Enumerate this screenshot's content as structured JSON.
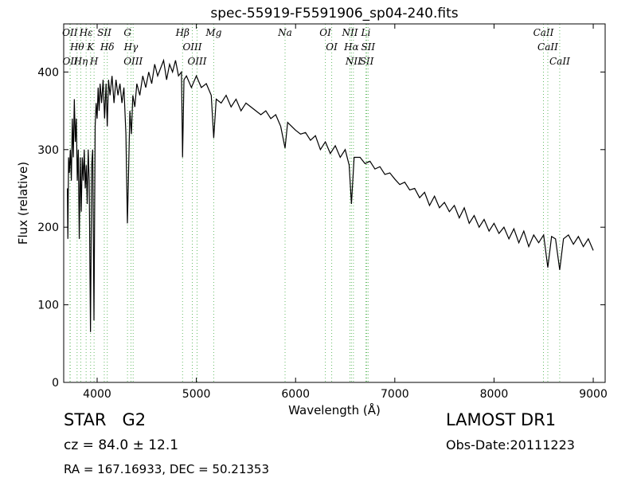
{
  "chart_data": {
    "type": "line",
    "title": "spec-55919-F5591906_sp04-240.fits",
    "x_label": "Wavelength (Å)",
    "y_label": "Flux (relative)",
    "xlim": [
      3663,
      9120
    ],
    "ylim": [
      0,
      462
    ],
    "xticks": [
      4000,
      5000,
      6000,
      7000,
      8000,
      9000
    ],
    "yticks": [
      0,
      100,
      200,
      300,
      400
    ],
    "color": "#000000",
    "line_color": "#66bb66",
    "x": [
      3700,
      3705,
      3712,
      3720,
      3730,
      3740,
      3750,
      3760,
      3770,
      3780,
      3790,
      3800,
      3810,
      3820,
      3830,
      3840,
      3850,
      3860,
      3870,
      3880,
      3890,
      3900,
      3910,
      3920,
      3933,
      3945,
      3955,
      3968,
      3980,
      3990,
      4000,
      4010,
      4020,
      4030,
      4045,
      4060,
      4075,
      4090,
      4102,
      4115,
      4130,
      4150,
      4170,
      4190,
      4210,
      4230,
      4250,
      4270,
      4290,
      4305,
      4315,
      4330,
      4345,
      4360,
      4380,
      4400,
      4430,
      4460,
      4490,
      4520,
      4550,
      4580,
      4610,
      4640,
      4670,
      4700,
      4730,
      4760,
      4790,
      4820,
      4850,
      4861,
      4875,
      4900,
      4950,
      5000,
      5050,
      5100,
      5150,
      5175,
      5200,
      5250,
      5300,
      5350,
      5400,
      5450,
      5500,
      5550,
      5600,
      5650,
      5700,
      5750,
      5800,
      5850,
      5894,
      5920,
      5960,
      6000,
      6050,
      6100,
      6150,
      6200,
      6250,
      6300,
      6350,
      6400,
      6450,
      6500,
      6540,
      6563,
      6590,
      6650,
      6700,
      6750,
      6800,
      6850,
      6900,
      6950,
      7000,
      7050,
      7100,
      7150,
      7200,
      7250,
      7300,
      7350,
      7400,
      7450,
      7500,
      7550,
      7600,
      7650,
      7700,
      7750,
      7800,
      7850,
      7900,
      7950,
      8000,
      8050,
      8100,
      8150,
      8200,
      8250,
      8300,
      8350,
      8400,
      8450,
      8500,
      8542,
      8580,
      8620,
      8662,
      8700,
      8750,
      8800,
      8850,
      8900,
      8950,
      9000
    ],
    "values": [
      250,
      185,
      290,
      270,
      300,
      260,
      340,
      290,
      365,
      310,
      340,
      260,
      300,
      185,
      290,
      220,
      290,
      260,
      300,
      250,
      280,
      230,
      300,
      260,
      65,
      280,
      300,
      80,
      330,
      360,
      340,
      380,
      350,
      385,
      360,
      390,
      340,
      385,
      330,
      390,
      370,
      395,
      360,
      390,
      370,
      385,
      360,
      380,
      320,
      205,
      260,
      350,
      320,
      370,
      355,
      385,
      370,
      395,
      380,
      400,
      385,
      410,
      395,
      405,
      415,
      390,
      410,
      400,
      415,
      395,
      400,
      290,
      390,
      395,
      380,
      395,
      380,
      385,
      370,
      315,
      365,
      360,
      370,
      355,
      365,
      350,
      360,
      355,
      350,
      345,
      350,
      340,
      345,
      330,
      302,
      335,
      330,
      325,
      320,
      322,
      312,
      318,
      300,
      310,
      295,
      305,
      290,
      300,
      280,
      230,
      290,
      290,
      282,
      285,
      275,
      278,
      268,
      270,
      262,
      255,
      258,
      248,
      250,
      238,
      245,
      228,
      240,
      225,
      232,
      220,
      228,
      212,
      225,
      205,
      215,
      200,
      210,
      195,
      205,
      192,
      200,
      185,
      198,
      180,
      195,
      175,
      190,
      180,
      190,
      148,
      188,
      185,
      145,
      185,
      190,
      178,
      188,
      175,
      185,
      170
    ],
    "lines": [
      {
        "label": "OII",
        "wavelength": 3726
      },
      {
        "label": "Hθ",
        "wavelength": 3798
      },
      {
        "label": "OII",
        "wavelength": 3729
      },
      {
        "label": "Hη",
        "wavelength": 3835
      },
      {
        "label": "Hε",
        "wavelength": 3889
      },
      {
        "label": "K",
        "wavelength": 3934
      },
      {
        "label": "H",
        "wavelength": 3969
      },
      {
        "label": "SII",
        "wavelength": 4072
      },
      {
        "label": "Hδ",
        "wavelength": 4102
      },
      {
        "label": "G",
        "wavelength": 4306
      },
      {
        "label": "Hγ",
        "wavelength": 4341
      },
      {
        "label": "OIII",
        "wavelength": 4363
      },
      {
        "label": "Hβ",
        "wavelength": 4861
      },
      {
        "label": "OIII",
        "wavelength": 4959
      },
      {
        "label": "OIII",
        "wavelength": 5007
      },
      {
        "label": "Mg",
        "wavelength": 5175
      },
      {
        "label": "Na",
        "wavelength": 5894
      },
      {
        "label": "OI",
        "wavelength": 6300
      },
      {
        "label": "OI",
        "wavelength": 6364
      },
      {
        "label": "NII",
        "wavelength": 6548
      },
      {
        "label": "Hα",
        "wavelength": 6563
      },
      {
        "label": "NII",
        "wavelength": 6583
      },
      {
        "label": "Li",
        "wavelength": 6708
      },
      {
        "label": "SII",
        "wavelength": 6717
      },
      {
        "label": "SII",
        "wavelength": 6731
      },
      {
        "label": "CaII",
        "wavelength": 8498
      },
      {
        "label": "CaII",
        "wavelength": 8542
      },
      {
        "label": "CaII",
        "wavelength": 8662
      }
    ],
    "object_class": "STAR   G2",
    "redshift_text": "cz = 84.0 ± 12.1",
    "coords_text": "RA = 167.16933, DEC = 50.21353",
    "survey": "LAMOST DR1",
    "obs_date": "Obs-Date:20111223"
  }
}
